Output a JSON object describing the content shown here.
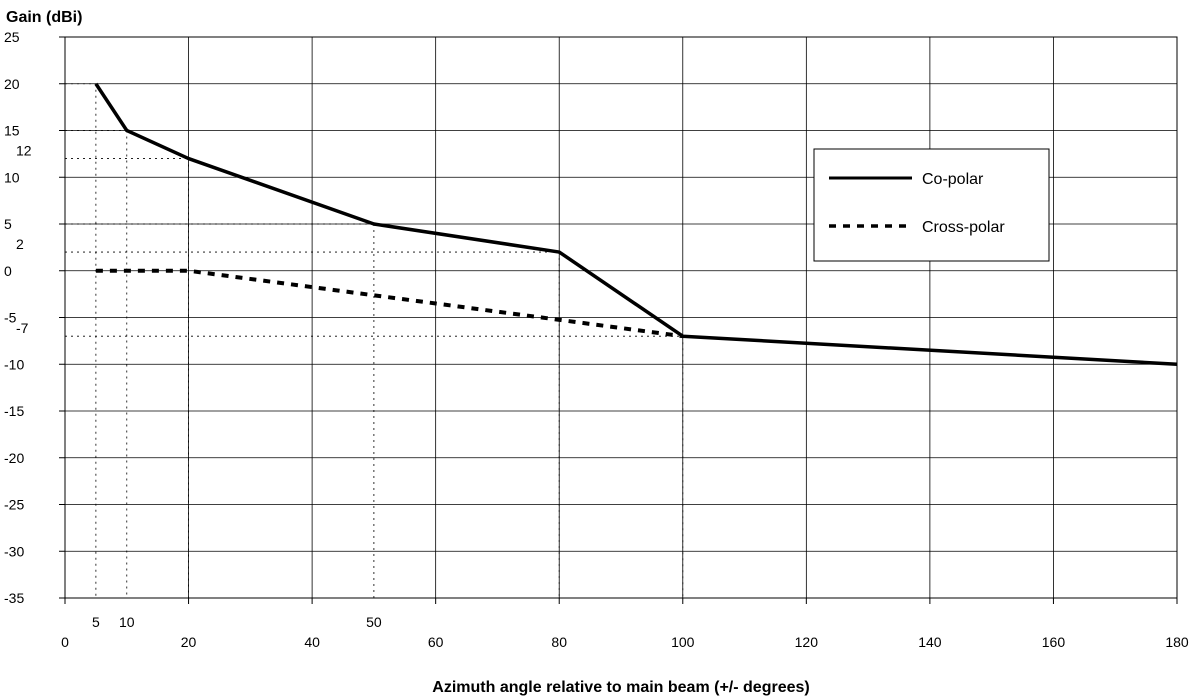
{
  "chart_data": {
    "type": "line",
    "ylabel": "Gain  (dBi)",
    "xlabel": "Azimuth angle relative to main beam (+/- degrees)",
    "xlim": [
      0,
      180
    ],
    "ylim": [
      -35,
      25
    ],
    "x_ticks": [
      0,
      20,
      40,
      60,
      80,
      100,
      120,
      140,
      160,
      180
    ],
    "y_ticks": [
      25,
      20,
      15,
      10,
      5,
      0,
      -5,
      -10,
      -15,
      -20,
      -25,
      -30,
      -35
    ],
    "extra_x_ticks": [
      5,
      10,
      50
    ],
    "extra_y_ticks": [
      12,
      2,
      -7
    ],
    "grid": true,
    "legend_position": "right",
    "series": [
      {
        "name": "Co-polar",
        "style": "solid",
        "color": "#000000",
        "x": [
          5,
          10,
          20,
          50,
          80,
          100,
          180
        ],
        "y": [
          20,
          15,
          12,
          5,
          2,
          -7,
          -10
        ]
      },
      {
        "name": "Cross-polar",
        "style": "dashed",
        "color": "#000000",
        "x": [
          5,
          20,
          100
        ],
        "y": [
          0,
          0,
          -7
        ]
      }
    ],
    "reference_lines": [
      {
        "x": 5,
        "y": 20
      },
      {
        "x": 10,
        "y": 15
      },
      {
        "x": 20,
        "y": 12
      },
      {
        "x": 50,
        "y": 5
      },
      {
        "x": 80,
        "y": 2
      },
      {
        "x": 100,
        "y": -7
      }
    ]
  }
}
